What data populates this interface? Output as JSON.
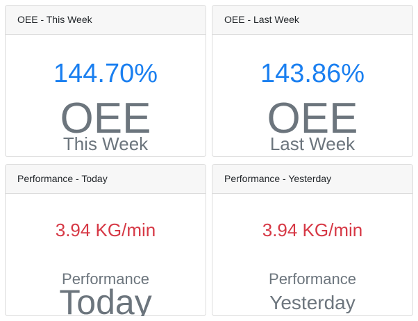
{
  "cards": [
    {
      "header": "OEE - This Week",
      "value": "144.70%",
      "label_primary": "OEE",
      "label_secondary": "This Week"
    },
    {
      "header": "OEE - Last Week",
      "value": "143.86%",
      "label_primary": "OEE",
      "label_secondary": "Last Week"
    },
    {
      "header": "Performance - Today",
      "value": "3.94 KG/min",
      "label_primary": "Performance",
      "label_secondary": "Today"
    },
    {
      "header": "Performance - Yesterday",
      "value": "3.94 KG/min",
      "label_primary": "Performance",
      "label_secondary": "Yesterday"
    }
  ],
  "colors": {
    "oee_value": "#1a7ff0",
    "performance_value": "#d63845",
    "label": "#6c757d",
    "header_bg": "#f7f7f7"
  }
}
